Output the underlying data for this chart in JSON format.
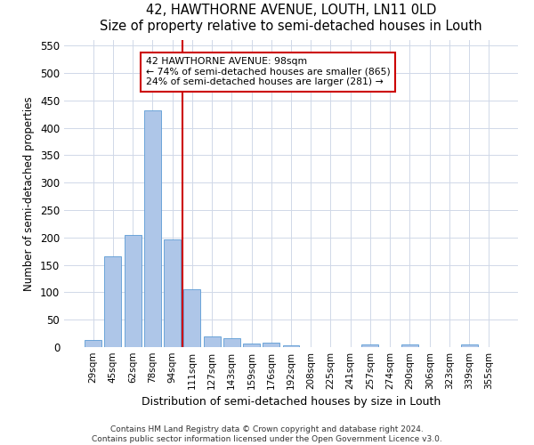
{
  "title": "42, HAWTHORNE AVENUE, LOUTH, LN11 0LD",
  "subtitle": "Size of property relative to semi-detached houses in Louth",
  "xlabel": "Distribution of semi-detached houses by size in Louth",
  "ylabel": "Number of semi-detached properties",
  "bar_labels": [
    "29sqm",
    "45sqm",
    "62sqm",
    "78sqm",
    "94sqm",
    "111sqm",
    "127sqm",
    "143sqm",
    "159sqm",
    "176sqm",
    "192sqm",
    "208sqm",
    "225sqm",
    "241sqm",
    "257sqm",
    "274sqm",
    "290sqm",
    "306sqm",
    "323sqm",
    "339sqm",
    "355sqm"
  ],
  "bar_values": [
    13,
    165,
    204,
    432,
    197,
    106,
    20,
    17,
    6,
    8,
    4,
    0,
    0,
    0,
    5,
    0,
    5,
    0,
    0,
    5,
    0
  ],
  "bar_color": "#aec6e8",
  "bar_edge_color": "#5b9bd5",
  "vline_x_idx": 4,
  "vline_color": "#cc0000",
  "annotation_title": "42 HAWTHORNE AVENUE: 98sqm",
  "annotation_line1": "← 74% of semi-detached houses are smaller (865)",
  "annotation_line2": "24% of semi-detached houses are larger (281) →",
  "annotation_box_color": "#ffffff",
  "annotation_box_edge": "#cc0000",
  "ylim": [
    0,
    560
  ],
  "yticks": [
    0,
    50,
    100,
    150,
    200,
    250,
    300,
    350,
    400,
    450,
    500,
    550
  ],
  "footer1": "Contains HM Land Registry data © Crown copyright and database right 2024.",
  "footer2": "Contains public sector information licensed under the Open Government Licence v3.0.",
  "bg_color": "#ffffff",
  "plot_bg_color": "#ffffff",
  "grid_color": "#d0d8e8"
}
